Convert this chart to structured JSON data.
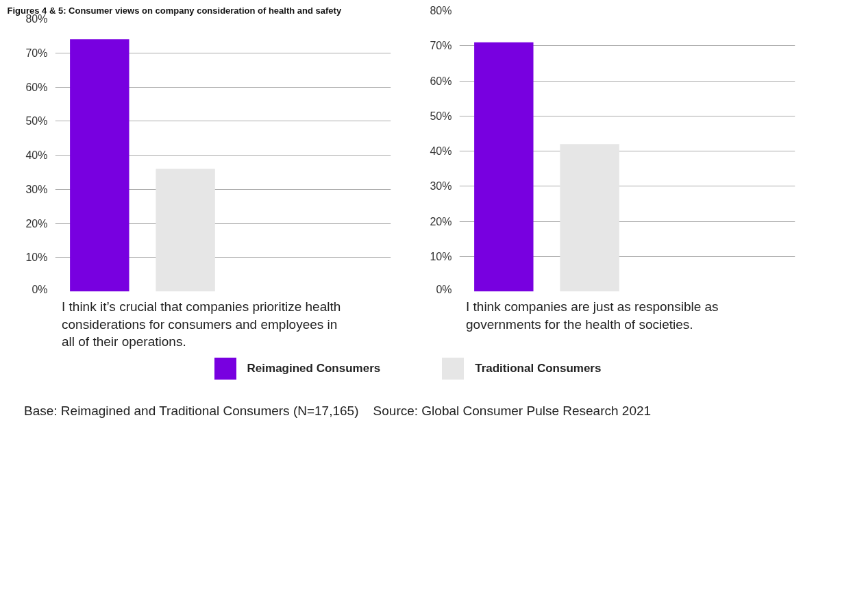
{
  "chart_data": [
    {
      "type": "bar",
      "title": "Figures 4 & 5: Consumer views on company consideration of health and safety",
      "categories": [
        null
      ],
      "xlabel": "I think it’s crucial that companies prioritize health considerations for consumers and employees in all of their operations.",
      "series": [
        {
          "name": "Reimagined Consumers",
          "color": "#7800e0",
          "values": [
            74
          ]
        },
        {
          "name": "Traditional Consumers",
          "color": "#e6e6e6",
          "values": [
            36
          ]
        }
      ],
      "ylim": [
        0,
        80
      ],
      "yticks": [
        {
          "value": 0,
          "label": "0%"
        },
        {
          "value": 10,
          "label": "10%"
        },
        {
          "value": 20,
          "label": "20%"
        },
        {
          "value": 30,
          "label": "30%"
        },
        {
          "value": 40,
          "label": "40%"
        },
        {
          "value": 50,
          "label": "50%"
        },
        {
          "value": 60,
          "label": "60%"
        },
        {
          "value": 70,
          "label": "70%"
        },
        {
          "value": 80,
          "label": "80%"
        }
      ],
      "grid": "y",
      "legend": "bottom",
      "annotations": [
        "Base: Reimagined and Traditional Consumers (N=17,165)",
        "Source: Global Consumer Pulse Research 2021"
      ]
    },
    {
      "type": "bar",
      "categories": [
        null
      ],
      "xlabel": "I think companies are just as responsible as governments for the health of societies.",
      "series": [
        {
          "name": "Reimagined Consumers",
          "color": "#7800e0",
          "values": [
            71
          ]
        },
        {
          "name": "Traditional Consumers",
          "color": "#e6e6e6",
          "values": [
            42
          ]
        }
      ],
      "ylim": [
        0,
        80
      ],
      "yticks": [
        {
          "value": 0,
          "label": "0%"
        },
        {
          "value": 10,
          "label": "10%"
        },
        {
          "value": 20,
          "label": "20%"
        },
        {
          "value": 30,
          "label": "30%"
        },
        {
          "value": 40,
          "label": "40%"
        },
        {
          "value": 50,
          "label": "50%"
        },
        {
          "value": 60,
          "label": "60%"
        },
        {
          "value": 70,
          "label": "70%"
        },
        {
          "value": 80,
          "label": "80%"
        }
      ],
      "grid": "y",
      "legend": "bottom"
    }
  ]
}
